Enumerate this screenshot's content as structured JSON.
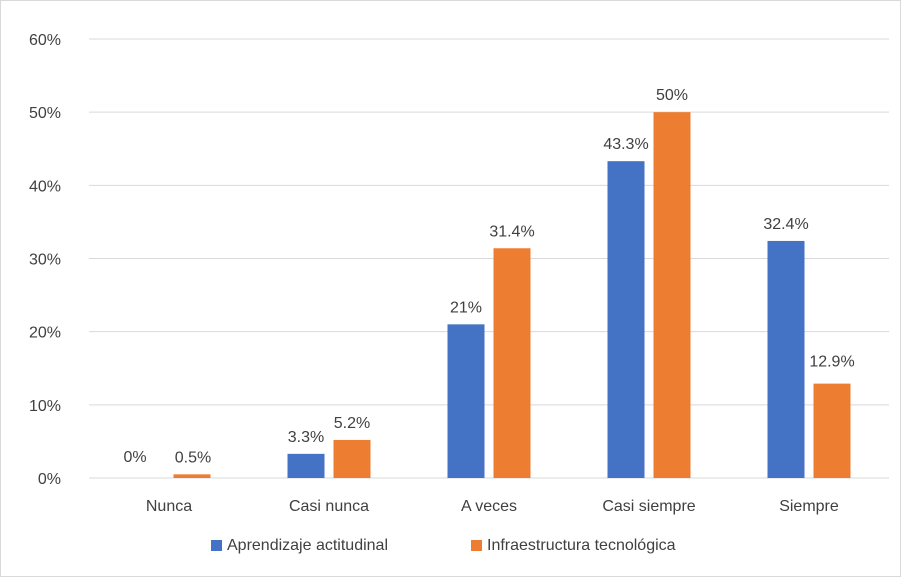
{
  "chart_data": {
    "type": "bar",
    "categories": [
      "Nunca",
      "Casi nunca",
      "A veces",
      "Casi siempre",
      "Siempre"
    ],
    "series": [
      {
        "name": "Aprendizaje actitudinal",
        "values": [
          0,
          3.3,
          21,
          43.3,
          32.4
        ],
        "labels": [
          "0%",
          "3.3%",
          "21%",
          "43.3%",
          "32.4%"
        ],
        "color": "#4472c4"
      },
      {
        "name": "Infraestructura tecnológica",
        "values": [
          0.5,
          5.2,
          31.4,
          50,
          12.9
        ],
        "labels": [
          "0.5%",
          "5.2%",
          "31.4%",
          "50%",
          "12.9%"
        ],
        "color": "#ed7d31"
      }
    ],
    "ylim": [
      0,
      60
    ],
    "yticks": [
      0,
      10,
      20,
      30,
      40,
      50,
      60
    ],
    "ytick_labels": [
      "0%",
      "10%",
      "20%",
      "30%",
      "40%",
      "50%",
      "60%"
    ],
    "grid": true,
    "legend": "bottom",
    "gridline_color": "#d9d9d9"
  }
}
